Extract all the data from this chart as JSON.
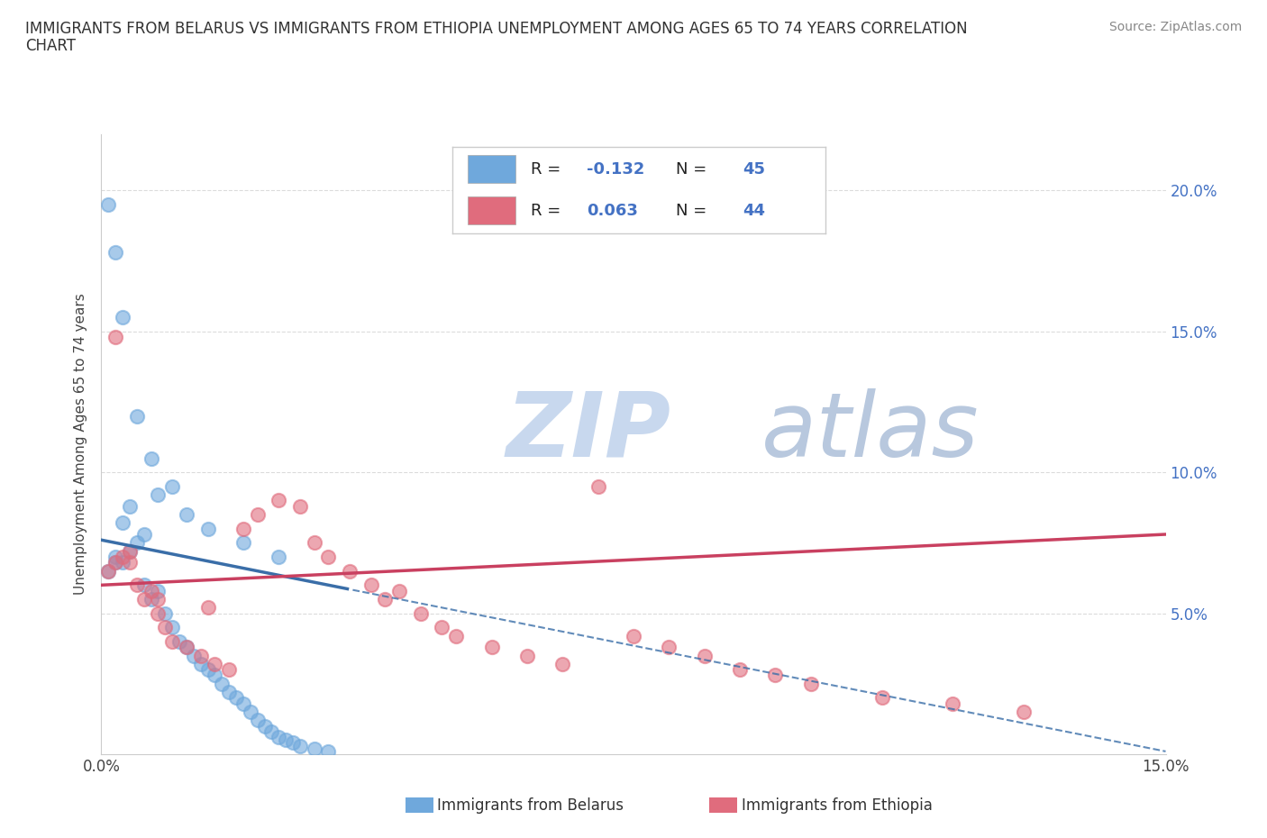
{
  "title_line1": "IMMIGRANTS FROM BELARUS VS IMMIGRANTS FROM ETHIOPIA UNEMPLOYMENT AMONG AGES 65 TO 74 YEARS CORRELATION",
  "title_line2": "CHART",
  "source": "Source: ZipAtlas.com",
  "ylabel": "Unemployment Among Ages 65 to 74 years",
  "xlim": [
    0.0,
    0.15
  ],
  "ylim": [
    0.0,
    0.22
  ],
  "belarus_color": "#6fa8dc",
  "ethiopia_color": "#e06c7d",
  "belarus_line_color": "#3a6ea8",
  "ethiopia_line_color": "#c94060",
  "belarus_R": -0.132,
  "belarus_N": 45,
  "ethiopia_R": 0.063,
  "ethiopia_N": 44,
  "watermark_color": "#d0dff0",
  "legend_label_belarus": "Immigrants from Belarus",
  "legend_label_ethiopia": "Immigrants from Ethiopia",
  "belarus_scatter_x": [
    0.001,
    0.002,
    0.003,
    0.004,
    0.005,
    0.006,
    0.007,
    0.008,
    0.009,
    0.01,
    0.011,
    0.012,
    0.013,
    0.014,
    0.015,
    0.016,
    0.017,
    0.018,
    0.019,
    0.02,
    0.021,
    0.022,
    0.023,
    0.024,
    0.025,
    0.026,
    0.027,
    0.028,
    0.03,
    0.032,
    0.001,
    0.002,
    0.003,
    0.005,
    0.007,
    0.01,
    0.012,
    0.015,
    0.02,
    0.025,
    0.003,
    0.006,
    0.004,
    0.008,
    0.002
  ],
  "belarus_scatter_y": [
    0.065,
    0.07,
    0.068,
    0.072,
    0.075,
    0.06,
    0.055,
    0.058,
    0.05,
    0.045,
    0.04,
    0.038,
    0.035,
    0.032,
    0.03,
    0.028,
    0.025,
    0.022,
    0.02,
    0.018,
    0.015,
    0.012,
    0.01,
    0.008,
    0.006,
    0.005,
    0.004,
    0.003,
    0.002,
    0.001,
    0.195,
    0.178,
    0.155,
    0.12,
    0.105,
    0.095,
    0.085,
    0.08,
    0.075,
    0.07,
    0.082,
    0.078,
    0.088,
    0.092,
    0.068
  ],
  "ethiopia_scatter_x": [
    0.001,
    0.002,
    0.003,
    0.004,
    0.005,
    0.006,
    0.007,
    0.008,
    0.009,
    0.01,
    0.012,
    0.014,
    0.016,
    0.018,
    0.02,
    0.022,
    0.025,
    0.028,
    0.03,
    0.032,
    0.035,
    0.038,
    0.04,
    0.042,
    0.045,
    0.048,
    0.05,
    0.055,
    0.06,
    0.065,
    0.07,
    0.075,
    0.08,
    0.085,
    0.09,
    0.095,
    0.1,
    0.11,
    0.12,
    0.13,
    0.002,
    0.004,
    0.008,
    0.015
  ],
  "ethiopia_scatter_y": [
    0.065,
    0.068,
    0.07,
    0.072,
    0.06,
    0.055,
    0.058,
    0.05,
    0.045,
    0.04,
    0.038,
    0.035,
    0.032,
    0.03,
    0.08,
    0.085,
    0.09,
    0.088,
    0.075,
    0.07,
    0.065,
    0.06,
    0.055,
    0.058,
    0.05,
    0.045,
    0.042,
    0.038,
    0.035,
    0.032,
    0.095,
    0.042,
    0.038,
    0.035,
    0.03,
    0.028,
    0.025,
    0.02,
    0.018,
    0.015,
    0.148,
    0.068,
    0.055,
    0.052
  ]
}
